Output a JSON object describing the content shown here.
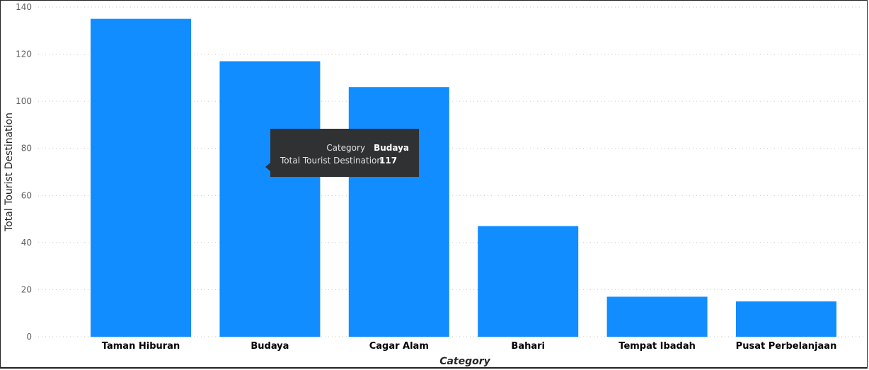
{
  "chart_data": {
    "type": "bar",
    "categories": [
      "Taman Hiburan",
      "Budaya",
      "Cagar Alam",
      "Bahari",
      "Tempat Ibadah",
      "Pusat Perbelanjaan"
    ],
    "values": [
      135,
      117,
      106,
      47,
      17,
      15
    ],
    "xlabel": "Category",
    "ylabel": "Total Tourist Destination",
    "ylim": [
      0,
      140
    ],
    "yticks": [
      "0",
      "20",
      "40",
      "60",
      "80",
      "100",
      "120",
      "140"
    ],
    "grid": "horizontal-dotted",
    "bar_color": "#118dff"
  },
  "tooltip": {
    "rows": [
      {
        "key": "Category",
        "value": "Budaya"
      },
      {
        "key": "Total Tourist Destination",
        "value": "117"
      }
    ]
  }
}
